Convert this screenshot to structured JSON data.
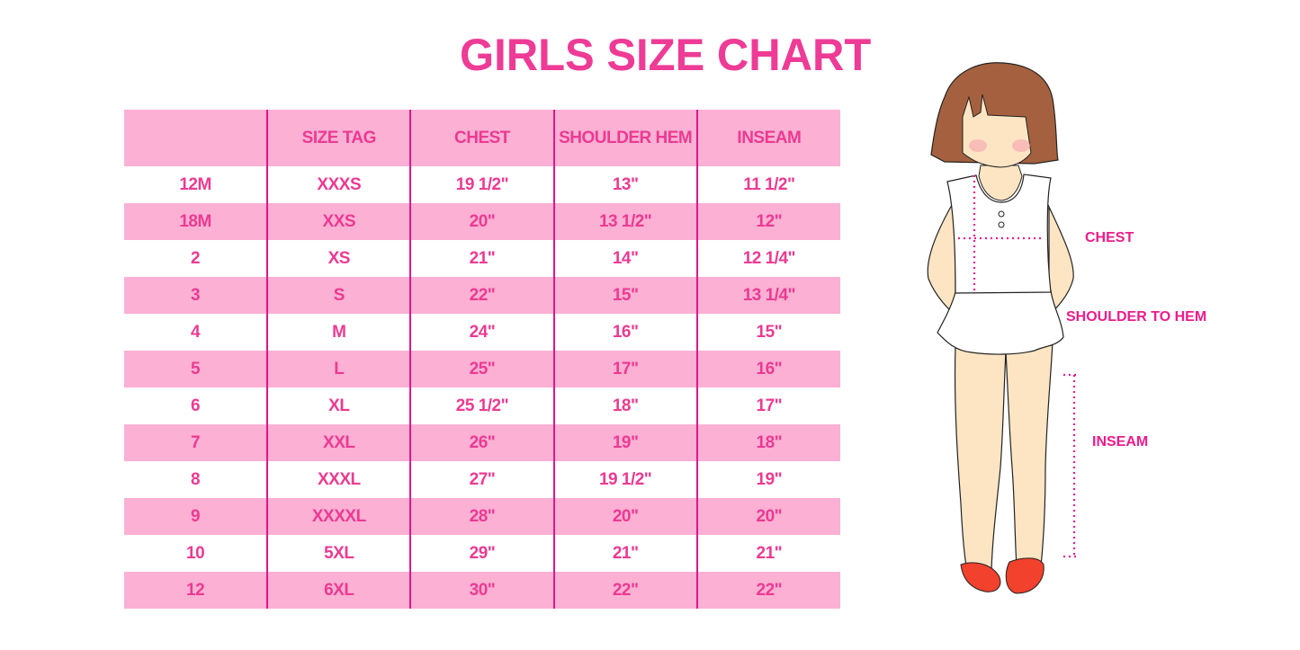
{
  "title": "GIRLS SIZE CHART",
  "table": {
    "headers": [
      "",
      "SIZE TAG",
      "CHEST",
      "SHOULDER HEM",
      "INSEAM"
    ],
    "rows": [
      [
        "12M",
        "XXXS",
        "19 1/2\"",
        "13\"",
        "11 1/2\""
      ],
      [
        "18M",
        "XXS",
        "20\"",
        "13 1/2\"",
        "12\""
      ],
      [
        "2",
        "XS",
        "21\"",
        "14\"",
        "12 1/4\""
      ],
      [
        "3",
        "S",
        "22\"",
        "15\"",
        "13 1/4\""
      ],
      [
        "4",
        "M",
        "24\"",
        "16\"",
        "15\""
      ],
      [
        "5",
        "L",
        "25\"",
        "17\"",
        "16\""
      ],
      [
        "6",
        "XL",
        "25 1/2\"",
        "18\"",
        "17\""
      ],
      [
        "7",
        "XXL",
        "26\"",
        "19\"",
        "18\""
      ],
      [
        "8",
        "XXXL",
        "27\"",
        "19 1/2\"",
        "19\""
      ],
      [
        "9",
        "XXXXL",
        "28\"",
        "20\"",
        "20\""
      ],
      [
        "10",
        "5XL",
        "29\"",
        "21\"",
        "21\""
      ],
      [
        "12",
        "6XL",
        "30\"",
        "22\"",
        "22\""
      ]
    ]
  },
  "diagram": {
    "labels": {
      "chest": "CHEST",
      "shoulder_to_hem": "SHOULDER TO HEM",
      "inseam": "INSEAM"
    }
  },
  "colors": {
    "accent": "#ec3a92",
    "row_pink": "#fbb0d4",
    "divider": "#e0158a"
  }
}
